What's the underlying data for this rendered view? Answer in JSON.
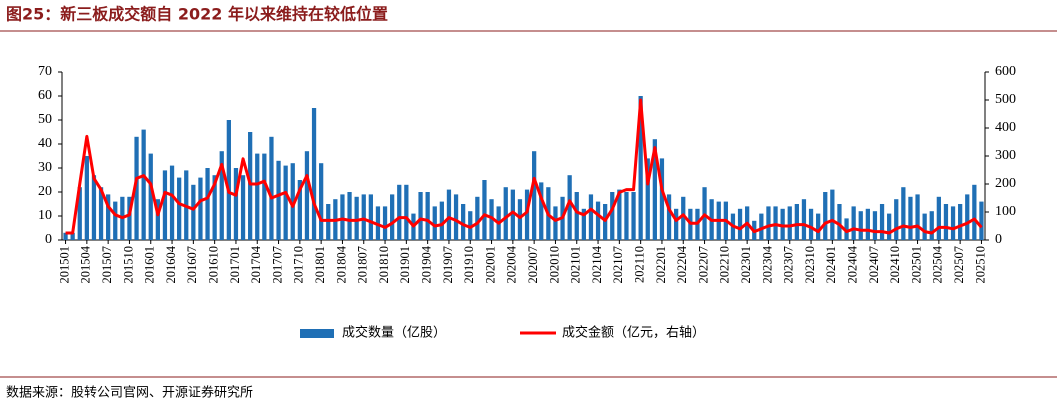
{
  "chart_data": {
    "type": "bar_line",
    "title": "图25：新三板成交额自 2022 年以来维持在较低位置",
    "source": "数据来源：股转公司官网、开源证券研究所",
    "categories": [
      "201501",
      null,
      null,
      "201504",
      null,
      null,
      "201507",
      null,
      null,
      "201510",
      null,
      null,
      "201601",
      null,
      null,
      "201604",
      null,
      null,
      "201607",
      null,
      null,
      "201610",
      null,
      null,
      "201701",
      null,
      null,
      "201704",
      null,
      null,
      "201707",
      null,
      null,
      "201710",
      null,
      null,
      "201801",
      null,
      null,
      "201804",
      null,
      null,
      "201807",
      null,
      null,
      "201810",
      null,
      null,
      "201901",
      null,
      null,
      "201904",
      null,
      null,
      "201907",
      null,
      null,
      "201910",
      null,
      null,
      "202001",
      null,
      null,
      "202004",
      null,
      null,
      "202007",
      null,
      null,
      "202010",
      null,
      null,
      "202101",
      null,
      null,
      "202104",
      null,
      null,
      "202107",
      null,
      null,
      "202110",
      null,
      null,
      "202201",
      null,
      null,
      "202204",
      null,
      null,
      "202207",
      null,
      null,
      "202210",
      null,
      null,
      "202301",
      null,
      null,
      "202304",
      null,
      null,
      "202307",
      null,
      null,
      "202310",
      null,
      null,
      "202401",
      null,
      null,
      "202404",
      null,
      null,
      "202407",
      null,
      null,
      "202410",
      null,
      null,
      "202501",
      null,
      null,
      "202504",
      null,
      null,
      "202507",
      null,
      null,
      "202510"
    ],
    "series": [
      {
        "name": "成交数量（亿股）",
        "color": "#1f6fb5",
        "values": [
          3,
          3,
          22,
          35,
          27,
          22,
          19,
          16,
          18,
          18,
          43,
          46,
          36,
          17,
          29,
          31,
          26,
          29,
          23,
          26,
          30,
          27,
          37,
          50,
          30,
          27,
          45,
          36,
          36,
          43,
          33,
          31,
          32,
          25,
          37,
          55,
          32,
          15,
          17,
          19,
          20,
          18,
          19,
          19,
          14,
          14,
          19,
          23,
          23,
          11,
          20,
          20,
          14,
          16,
          21,
          19,
          15,
          12,
          18,
          25,
          17,
          14,
          22,
          21,
          17,
          21,
          37,
          24,
          22,
          14,
          18,
          27,
          20,
          13,
          19,
          16,
          15,
          20,
          21,
          20,
          20,
          60,
          34,
          42,
          34,
          19,
          13,
          18,
          13,
          13,
          22,
          17,
          16,
          16,
          11,
          13,
          14,
          8,
          11,
          14,
          14,
          13,
          14,
          15,
          17,
          13,
          11,
          20,
          21,
          15,
          9,
          14,
          12,
          13,
          12,
          15,
          11,
          17,
          22,
          18,
          19,
          11,
          12,
          18,
          15,
          14,
          15,
          19,
          23,
          16
        ]
      },
      {
        "name": "成交金额（亿元，右轴）",
        "color": "#ff0000",
        "axis": "y2",
        "values": [
          25,
          25,
          200,
          370,
          220,
          180,
          120,
          90,
          80,
          90,
          220,
          230,
          200,
          90,
          170,
          160,
          130,
          120,
          110,
          140,
          150,
          200,
          270,
          170,
          160,
          290,
          200,
          200,
          210,
          150,
          160,
          170,
          120,
          180,
          230,
          130,
          70,
          70,
          70,
          75,
          70,
          70,
          75,
          65,
          55,
          45,
          60,
          80,
          80,
          50,
          75,
          70,
          50,
          55,
          80,
          70,
          55,
          45,
          60,
          90,
          80,
          60,
          80,
          100,
          80,
          100,
          220,
          150,
          90,
          70,
          80,
          140,
          100,
          90,
          110,
          90,
          70,
          110,
          170,
          180,
          180,
          500,
          200,
          330,
          180,
          110,
          70,
          90,
          60,
          60,
          90,
          70,
          70,
          70,
          50,
          40,
          60,
          30,
          40,
          50,
          55,
          50,
          50,
          55,
          55,
          45,
          30,
          60,
          70,
          55,
          30,
          40,
          35,
          35,
          30,
          30,
          25,
          40,
          50,
          45,
          50,
          30,
          25,
          45,
          45,
          40,
          50,
          60,
          75,
          45
        ]
      }
    ],
    "ylim": [
      0,
      70
    ],
    "yticks": [
      0,
      10,
      20,
      30,
      40,
      50,
      60,
      70
    ],
    "y2lim": [
      0,
      600
    ],
    "y2ticks": [
      0,
      100,
      200,
      300,
      400,
      500,
      600
    ],
    "grid": false,
    "legend": "bottom"
  }
}
